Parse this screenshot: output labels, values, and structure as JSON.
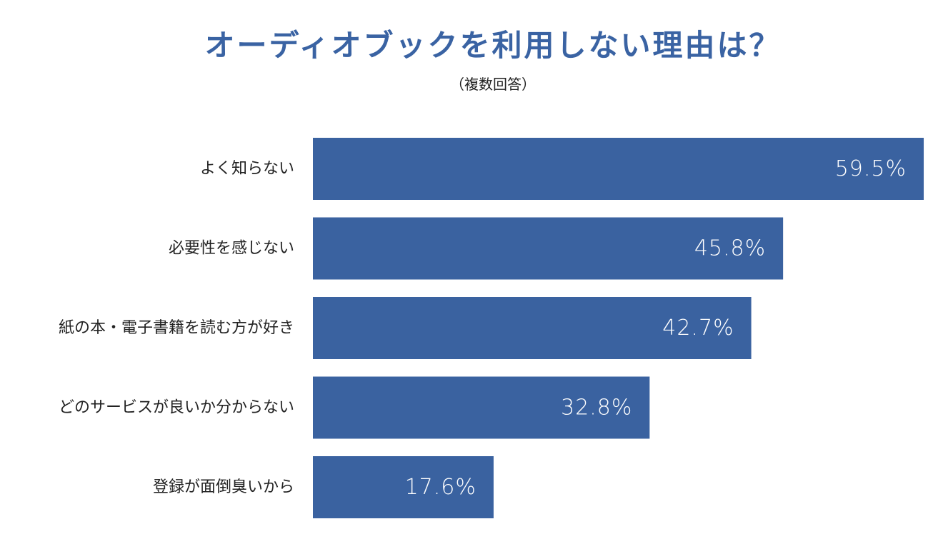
{
  "chart_data": {
    "type": "bar",
    "orientation": "horizontal",
    "title": "オーディオブックを利用しない理由は？",
    "subtitle": "（複数回答）",
    "categories": [
      "よく知らない",
      "必要性を感じない",
      "紙の本・電子書籍を読む方が好き",
      "どのサービスが良いか分からない",
      "登録が面倒臭いから"
    ],
    "values": [
      59.5,
      45.8,
      42.7,
      32.8,
      17.6
    ],
    "value_labels": [
      "59.5%",
      "45.8%",
      "42.7%",
      "32.8%",
      "17.6%"
    ],
    "bar_color": "#3a62a0",
    "label_color": "#ffffff",
    "grid": false,
    "legend": "none"
  }
}
